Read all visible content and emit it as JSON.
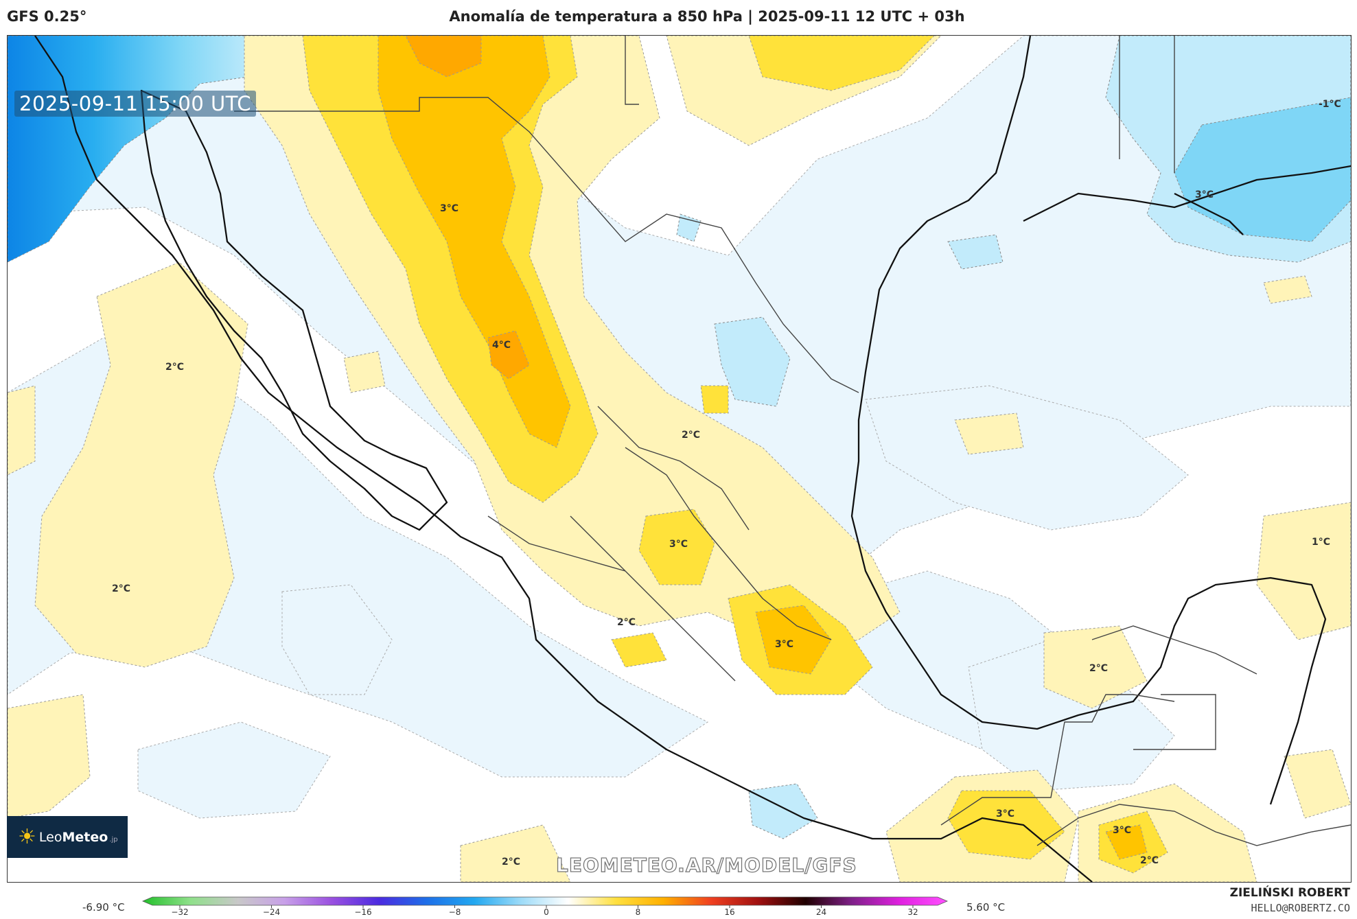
{
  "header": {
    "model": "GFS 0.25°",
    "title": "Anomalía de temperatura a 850 hPa | 2025-09-11 12 UTC + 03h"
  },
  "map": {
    "timestamp": "2025-09-11 15:00 UTC",
    "watermark": "LEOMETEO.AR/MODEL/GFS",
    "labels": [
      {
        "name": "label-3c-sonora",
        "text": "3°C"
      },
      {
        "name": "label-4c-sinaloa",
        "text": "4°C"
      },
      {
        "name": "label-2c-pacific-north",
        "text": "2°C"
      },
      {
        "name": "label-2c-plateau",
        "text": "2°C"
      },
      {
        "name": "label-2c-pacific-west",
        "text": "2°C"
      },
      {
        "name": "label-3c-jalisco",
        "text": "3°C"
      },
      {
        "name": "label-2c-michoacan",
        "text": "2°C"
      },
      {
        "name": "label-3c-central",
        "text": "3°C"
      },
      {
        "name": "label-3c-oaxaca",
        "text": "3°C"
      },
      {
        "name": "label-3c-guatemala",
        "text": "3°C"
      },
      {
        "name": "label-2c-campeche",
        "text": "2°C"
      },
      {
        "name": "label-1c-yucatan",
        "text": "1°C"
      },
      {
        "name": "label-minus1c-gulf",
        "text": "-1°C"
      },
      {
        "name": "label-3c-louisiana",
        "text": "3°C"
      },
      {
        "name": "label-2c-south-pacific",
        "text": "2°C"
      },
      {
        "name": "label-2c-salvador",
        "text": "2°C"
      }
    ]
  },
  "logo": {
    "brand_light": "Leo",
    "brand_bold": "Meteo",
    "suffix": ".jp"
  },
  "colorbar": {
    "min_label": "-6.90 °C",
    "max_label": "5.60 °C",
    "ticks": [
      "−32",
      "−24",
      "−16",
      "−8",
      "0",
      "8",
      "16",
      "24",
      "32"
    ],
    "stops": [
      "#22c02a",
      "#8fe08a",
      "#c8c8c8",
      "#c8a0e8",
      "#9a50e0",
      "#4b2be0",
      "#1e6fe8",
      "#22a8f0",
      "#9fdcf8",
      "#ffffff",
      "#ffe040",
      "#ffb000",
      "#f04020",
      "#a01010",
      "#200000",
      "#80208a",
      "#e020e0",
      "#ff50ff"
    ]
  },
  "credit": {
    "name": "ZIELIŃSKI ROBERT",
    "email": "HELLO@ROBERTZ.CO"
  },
  "colors": {
    "warm1": "#fff4b8",
    "warm2": "#ffe23a",
    "warm3": "#ffc400",
    "warm4": "#ffa800",
    "cold1": "#eaf6fd",
    "cold2": "#c2ebfb",
    "cold3": "#7fd6f6",
    "cold4": "#29aef0",
    "cold5": "#0d85e6"
  }
}
